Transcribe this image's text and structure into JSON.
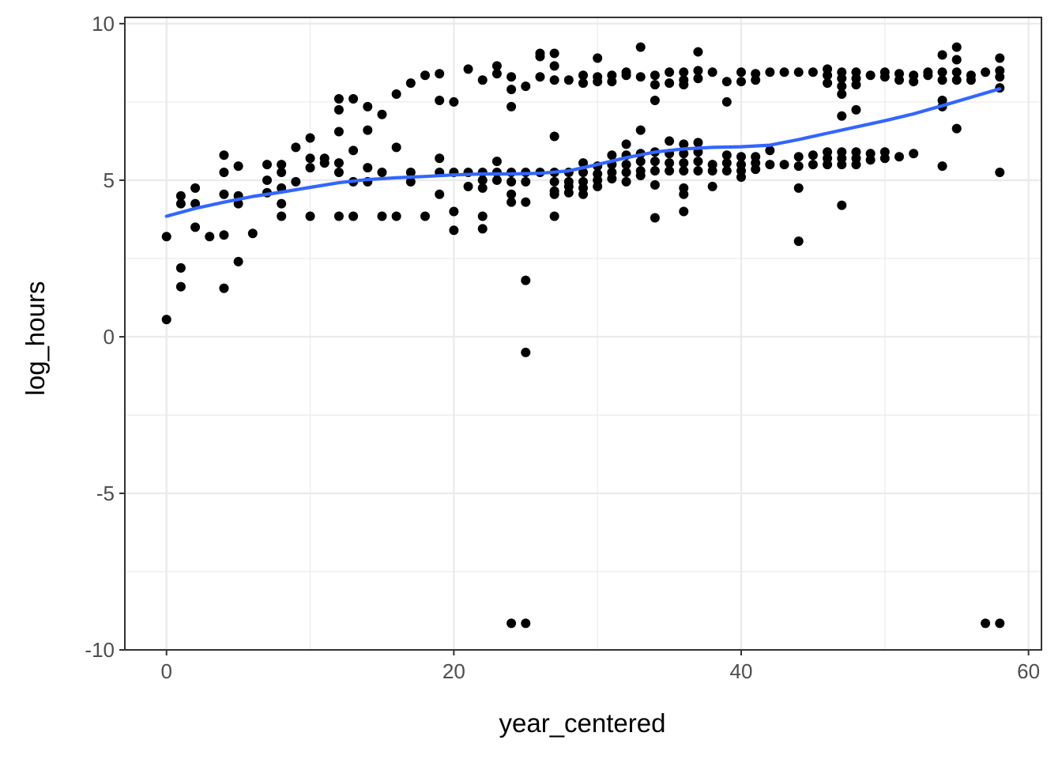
{
  "chart_data": {
    "type": "scatter",
    "title": "",
    "xlabel": "year_centered",
    "ylabel": "log_hours",
    "xlim": [
      -2.9,
      60.9
    ],
    "ylim": [
      -10.0,
      10.2
    ],
    "x_ticks": [
      0,
      20,
      40,
      60
    ],
    "y_ticks": [
      -10,
      -5,
      0,
      5,
      10
    ],
    "x_tick_labels": [
      "0",
      "20",
      "40",
      "60"
    ],
    "y_tick_labels": [
      "-10",
      "-5",
      "0",
      "5",
      "10"
    ],
    "grid": true,
    "legend": "none",
    "colors": {
      "points": "#000000",
      "smooth": "#3366ff",
      "grid": "#ebebeb",
      "panel_border": "#333333"
    },
    "series": [
      {
        "type": "scatter",
        "points": [
          [
            0,
            3.2
          ],
          [
            0,
            0.55
          ],
          [
            1,
            4.5
          ],
          [
            1,
            4.25
          ],
          [
            1,
            2.2
          ],
          [
            1,
            1.6
          ],
          [
            2,
            4.75
          ],
          [
            2,
            4.25
          ],
          [
            2,
            3.5
          ],
          [
            3,
            3.2
          ],
          [
            4,
            5.8
          ],
          [
            4,
            5.25
          ],
          [
            4,
            4.55
          ],
          [
            4,
            3.25
          ],
          [
            4,
            1.55
          ],
          [
            5,
            5.45
          ],
          [
            5,
            4.5
          ],
          [
            5,
            4.25
          ],
          [
            5,
            2.4
          ],
          [
            6,
            3.3
          ],
          [
            7,
            5.5
          ],
          [
            7,
            5.0
          ],
          [
            7,
            4.6
          ],
          [
            8,
            5.5
          ],
          [
            8,
            5.25
          ],
          [
            8,
            4.75
          ],
          [
            8,
            4.25
          ],
          [
            8,
            3.85
          ],
          [
            9,
            6.05
          ],
          [
            9,
            4.95
          ],
          [
            10,
            6.35
          ],
          [
            10,
            5.7
          ],
          [
            10,
            5.4
          ],
          [
            10,
            3.85
          ],
          [
            11,
            5.7
          ],
          [
            11,
            5.55
          ],
          [
            12,
            7.6
          ],
          [
            12,
            7.25
          ],
          [
            12,
            6.55
          ],
          [
            12,
            5.55
          ],
          [
            12,
            5.25
          ],
          [
            12,
            3.85
          ],
          [
            13,
            7.6
          ],
          [
            13,
            5.95
          ],
          [
            13,
            4.95
          ],
          [
            13,
            3.85
          ],
          [
            14,
            7.35
          ],
          [
            14,
            6.6
          ],
          [
            14,
            5.4
          ],
          [
            14,
            4.95
          ],
          [
            15,
            7.1
          ],
          [
            15,
            5.25
          ],
          [
            15,
            3.85
          ],
          [
            16,
            7.75
          ],
          [
            16,
            6.05
          ],
          [
            16,
            3.85
          ],
          [
            17,
            8.1
          ],
          [
            17,
            5.25
          ],
          [
            17,
            4.95
          ],
          [
            18,
            8.35
          ],
          [
            18,
            3.85
          ],
          [
            19,
            8.4
          ],
          [
            19,
            7.55
          ],
          [
            19,
            5.7
          ],
          [
            19,
            5.25
          ],
          [
            19,
            4.55
          ],
          [
            20,
            7.5
          ],
          [
            20,
            5.25
          ],
          [
            20,
            4.0
          ],
          [
            20,
            3.4
          ],
          [
            21,
            8.55
          ],
          [
            21,
            5.25
          ],
          [
            21,
            4.8
          ],
          [
            22,
            8.2
          ],
          [
            22,
            5.25
          ],
          [
            22,
            5.0
          ],
          [
            22,
            4.75
          ],
          [
            22,
            3.85
          ],
          [
            22,
            3.45
          ],
          [
            23,
            8.65
          ],
          [
            23,
            8.4
          ],
          [
            23,
            5.6
          ],
          [
            23,
            5.25
          ],
          [
            23,
            5.0
          ],
          [
            24,
            8.3
          ],
          [
            24,
            7.9
          ],
          [
            24,
            7.35
          ],
          [
            24,
            5.25
          ],
          [
            24,
            4.95
          ],
          [
            24,
            4.55
          ],
          [
            24,
            4.3
          ],
          [
            24,
            -9.15
          ],
          [
            25,
            8.0
          ],
          [
            25,
            5.25
          ],
          [
            25,
            4.95
          ],
          [
            25,
            4.3
          ],
          [
            25,
            1.8
          ],
          [
            25,
            -0.5
          ],
          [
            25,
            -9.15
          ],
          [
            26,
            9.05
          ],
          [
            26,
            8.95
          ],
          [
            26,
            8.3
          ],
          [
            26,
            5.25
          ],
          [
            27,
            9.05
          ],
          [
            27,
            8.65
          ],
          [
            27,
            8.2
          ],
          [
            27,
            6.4
          ],
          [
            27,
            5.25
          ],
          [
            27,
            4.95
          ],
          [
            27,
            4.65
          ],
          [
            27,
            4.55
          ],
          [
            27,
            3.85
          ],
          [
            28,
            8.2
          ],
          [
            28,
            5.25
          ],
          [
            28,
            4.95
          ],
          [
            28,
            4.8
          ],
          [
            28,
            4.6
          ],
          [
            29,
            8.35
          ],
          [
            29,
            8.1
          ],
          [
            29,
            5.55
          ],
          [
            29,
            5.25
          ],
          [
            29,
            4.95
          ],
          [
            29,
            4.75
          ],
          [
            29,
            4.55
          ],
          [
            30,
            8.9
          ],
          [
            30,
            8.3
          ],
          [
            30,
            8.15
          ],
          [
            30,
            5.45
          ],
          [
            30,
            5.2
          ],
          [
            30,
            5.0
          ],
          [
            30,
            4.8
          ],
          [
            31,
            8.35
          ],
          [
            31,
            8.15
          ],
          [
            31,
            5.8
          ],
          [
            31,
            5.5
          ],
          [
            31,
            5.25
          ],
          [
            31,
            5.05
          ],
          [
            32,
            8.45
          ],
          [
            32,
            8.35
          ],
          [
            32,
            6.15
          ],
          [
            32,
            5.8
          ],
          [
            32,
            5.5
          ],
          [
            32,
            5.25
          ],
          [
            32,
            4.95
          ],
          [
            33,
            9.25
          ],
          [
            33,
            8.3
          ],
          [
            33,
            6.6
          ],
          [
            33,
            5.85
          ],
          [
            33,
            5.6
          ],
          [
            33,
            5.3
          ],
          [
            33,
            5.15
          ],
          [
            34,
            8.35
          ],
          [
            34,
            8.05
          ],
          [
            34,
            7.55
          ],
          [
            34,
            5.9
          ],
          [
            34,
            5.6
          ],
          [
            34,
            5.3
          ],
          [
            34,
            4.85
          ],
          [
            34,
            3.8
          ],
          [
            35,
            8.45
          ],
          [
            35,
            8.1
          ],
          [
            35,
            6.25
          ],
          [
            35,
            5.85
          ],
          [
            35,
            5.55
          ],
          [
            35,
            5.3
          ],
          [
            36,
            8.45
          ],
          [
            36,
            8.2
          ],
          [
            36,
            8.05
          ],
          [
            36,
            6.15
          ],
          [
            36,
            5.85
          ],
          [
            36,
            5.55
          ],
          [
            36,
            5.3
          ],
          [
            36,
            4.75
          ],
          [
            36,
            4.55
          ],
          [
            36,
            4.0
          ],
          [
            37,
            9.1
          ],
          [
            37,
            8.5
          ],
          [
            37,
            8.25
          ],
          [
            37,
            6.2
          ],
          [
            37,
            5.9
          ],
          [
            37,
            5.6
          ],
          [
            37,
            5.3
          ],
          [
            38,
            8.45
          ],
          [
            38,
            5.5
          ],
          [
            38,
            5.3
          ],
          [
            38,
            4.8
          ],
          [
            39,
            8.15
          ],
          [
            39,
            7.5
          ],
          [
            39,
            5.8
          ],
          [
            39,
            5.55
          ],
          [
            39,
            5.3
          ],
          [
            40,
            8.45
          ],
          [
            40,
            8.15
          ],
          [
            40,
            5.75
          ],
          [
            40,
            5.5
          ],
          [
            40,
            5.3
          ],
          [
            40,
            5.1
          ],
          [
            41,
            8.4
          ],
          [
            41,
            8.2
          ],
          [
            41,
            5.75
          ],
          [
            41,
            5.55
          ],
          [
            41,
            5.35
          ],
          [
            42,
            8.45
          ],
          [
            42,
            5.95
          ],
          [
            42,
            5.5
          ],
          [
            43,
            8.45
          ],
          [
            43,
            5.5
          ],
          [
            44,
            8.45
          ],
          [
            44,
            5.75
          ],
          [
            44,
            5.45
          ],
          [
            44,
            4.75
          ],
          [
            44,
            3.05
          ],
          [
            45,
            8.45
          ],
          [
            45,
            5.8
          ],
          [
            45,
            5.5
          ],
          [
            46,
            8.55
          ],
          [
            46,
            8.35
          ],
          [
            46,
            8.1
          ],
          [
            46,
            5.9
          ],
          [
            46,
            5.7
          ],
          [
            46,
            5.5
          ],
          [
            47,
            8.45
          ],
          [
            47,
            8.25
          ],
          [
            47,
            8.0
          ],
          [
            47,
            7.75
          ],
          [
            47,
            7.05
          ],
          [
            47,
            5.9
          ],
          [
            47,
            5.7
          ],
          [
            47,
            5.5
          ],
          [
            47,
            4.2
          ],
          [
            48,
            8.45
          ],
          [
            48,
            8.25
          ],
          [
            48,
            8.05
          ],
          [
            48,
            7.25
          ],
          [
            48,
            5.9
          ],
          [
            48,
            5.7
          ],
          [
            48,
            5.5
          ],
          [
            49,
            8.35
          ],
          [
            49,
            5.85
          ],
          [
            49,
            5.65
          ],
          [
            50,
            8.45
          ],
          [
            50,
            8.3
          ],
          [
            50,
            5.9
          ],
          [
            50,
            5.7
          ],
          [
            51,
            8.4
          ],
          [
            51,
            8.2
          ],
          [
            51,
            5.75
          ],
          [
            52,
            8.35
          ],
          [
            52,
            8.15
          ],
          [
            52,
            5.85
          ],
          [
            53,
            8.45
          ],
          [
            53,
            8.35
          ],
          [
            54,
            9.0
          ],
          [
            54,
            8.45
          ],
          [
            54,
            8.2
          ],
          [
            54,
            7.55
          ],
          [
            54,
            7.35
          ],
          [
            54,
            5.45
          ],
          [
            55,
            9.25
          ],
          [
            55,
            8.85
          ],
          [
            55,
            8.45
          ],
          [
            55,
            8.2
          ],
          [
            55,
            6.65
          ],
          [
            56,
            8.35
          ],
          [
            56,
            8.2
          ],
          [
            57,
            8.45
          ],
          [
            57,
            -9.15
          ],
          [
            58,
            8.9
          ],
          [
            58,
            8.5
          ],
          [
            58,
            8.3
          ],
          [
            58,
            7.95
          ],
          [
            58,
            5.25
          ],
          [
            58,
            -9.15
          ]
        ]
      },
      {
        "type": "smooth",
        "x": [
          0,
          2,
          4,
          6,
          8,
          10,
          12,
          14,
          16,
          18,
          20,
          22,
          24,
          26,
          28,
          30,
          32,
          34,
          36,
          38,
          40,
          42,
          44,
          46,
          48,
          50,
          52,
          54,
          56,
          58
        ],
        "y": [
          3.85,
          4.1,
          4.3,
          4.48,
          4.62,
          4.77,
          4.92,
          5.02,
          5.08,
          5.12,
          5.17,
          5.2,
          5.2,
          5.22,
          5.3,
          5.5,
          5.72,
          5.9,
          6.0,
          6.05,
          6.07,
          6.12,
          6.3,
          6.5,
          6.7,
          6.9,
          7.12,
          7.38,
          7.65,
          7.92
        ]
      }
    ]
  }
}
